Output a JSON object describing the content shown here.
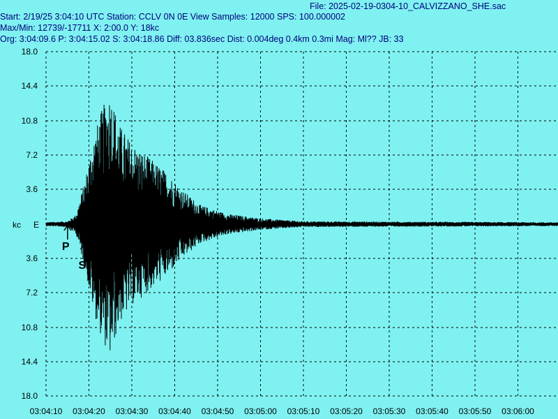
{
  "header": {
    "file": "File: 2025-02-19-0304-10_CALVIZZANO_SHE.sac",
    "start": "Start: 2/19/25  3:04:10 UTC Station: CCLV 0N 0E View Samples: 12000  SPS: 100.000002",
    "maxmin": "Max/Min: 12739/-17711 X: 2:00.0 Y: 18kc",
    "org": "Org: 3:04:09.6 P: 3:04:15.02 S: 3:04:18.86 Diff: 03.836sec Dist: 0.004deg 0.4km 0.3mi  Mag: Ml?? JB: 33"
  },
  "colors": {
    "background": "#7ff1f1",
    "header_text": "#00007b",
    "trace": "#000000",
    "grid": "#000000"
  },
  "chart_data": {
    "type": "line",
    "y_unit_label": "kc",
    "component_label": "E",
    "y_ticks_top": [
      "18.0",
      "14.4",
      "10.8",
      "7.2",
      "3.6"
    ],
    "y_ticks_bottom": [
      "3.6",
      "7.2",
      "10.8",
      "14.4",
      "18.0"
    ],
    "ylim": [
      -18.0,
      18.0
    ],
    "x_ticks": [
      "03:04:10",
      "03:04:20",
      "03:04:30",
      "03:04:40",
      "03:04:50",
      "03:05:00",
      "03:05:10",
      "03:05:20",
      "03:05:30",
      "03:05:40",
      "03:05:50",
      "03:06:00"
    ],
    "x_range_seconds": 120,
    "max_count": 12739,
    "min_count": -17711,
    "picks": [
      {
        "label": "P",
        "time": "3:04:15.02",
        "seconds": 5.02
      },
      {
        "label": "S",
        "time": "3:04:18.86",
        "seconds": 8.86
      }
    ],
    "envelope": [
      {
        "t": 0,
        "amp": 0.2
      },
      {
        "t": 5,
        "amp": 0.3
      },
      {
        "t": 7,
        "amp": 1.0
      },
      {
        "t": 9,
        "amp": 4.5
      },
      {
        "t": 11,
        "amp": 9.0
      },
      {
        "t": 13,
        "amp": 12.0
      },
      {
        "t": 15,
        "amp": 14.0
      },
      {
        "t": 17,
        "amp": 10.5
      },
      {
        "t": 20,
        "amp": 8.5
      },
      {
        "t": 24,
        "amp": 7.0
      },
      {
        "t": 28,
        "amp": 5.5
      },
      {
        "t": 32,
        "amp": 3.5
      },
      {
        "t": 36,
        "amp": 2.0
      },
      {
        "t": 42,
        "amp": 1.1
      },
      {
        "t": 50,
        "amp": 0.6
      },
      {
        "t": 60,
        "amp": 0.3
      },
      {
        "t": 120,
        "amp": 0.2
      }
    ]
  }
}
